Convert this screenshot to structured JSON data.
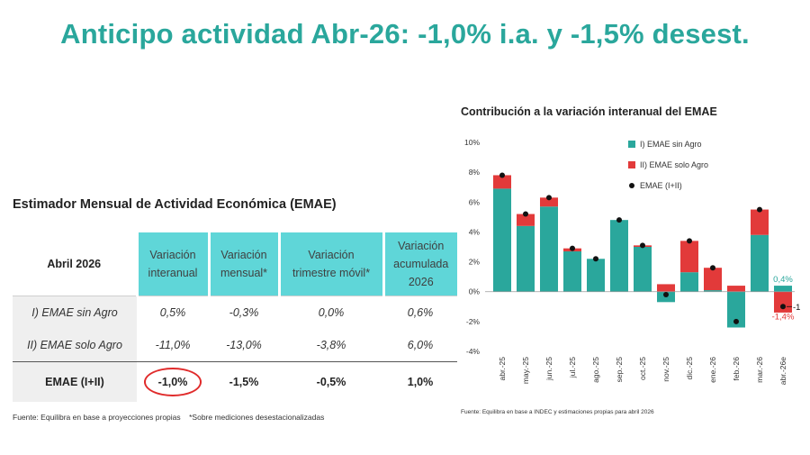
{
  "title": "Anticipo actividad Abr-26: -1,0% i.a. y -1,5% desest.",
  "table": {
    "title": "Estimador Mensual de Actividad Económica (EMAE)",
    "row_header": "Abril 2026",
    "columns": [
      [
        "Variación",
        "interanual"
      ],
      [
        "Variación",
        "mensual*"
      ],
      [
        "Variación",
        "trimestre móvil*"
      ],
      [
        "Variación",
        "acumulada",
        "2026"
      ]
    ],
    "rows": [
      {
        "label": "I) EMAE sin Agro",
        "values": [
          "0,5%",
          "-0,3%",
          "0,0%",
          "0,6%"
        ]
      },
      {
        "label": "II) EMAE solo Agro",
        "values": [
          "-11,0%",
          "-13,0%",
          "-3,8%",
          "6,0%"
        ]
      },
      {
        "label": "EMAE (I+II)",
        "values": [
          "-1,0%",
          "-1,5%",
          "-0,5%",
          "1,0%"
        ]
      }
    ],
    "footnote_source": "Fuente: Equilibra en base a proyecciones propias",
    "footnote_note": "*Sobre mediciones desestacionalizadas"
  },
  "chart_data": {
    "type": "bar",
    "title": "Contribución a la variación interanual del EMAE",
    "categories": [
      "abr.-25",
      "may.-25",
      "jun.-25",
      "jul.-25",
      "ago.-25",
      "sep.-25",
      "oct.-25",
      "nov.-25",
      "dic.-25",
      "ene.-26",
      "feb.-26",
      "mar.-26",
      "abr.-26e"
    ],
    "series": [
      {
        "name": "I) EMAE sin Agro",
        "type": "bar",
        "stacked": true,
        "color": "#2aa79c",
        "values": [
          6.9,
          4.4,
          5.7,
          2.7,
          2.2,
          4.8,
          3.0,
          -0.7,
          1.3,
          0.1,
          -2.4,
          3.8,
          0.4
        ]
      },
      {
        "name": "II) EMAE solo Agro",
        "type": "bar",
        "stacked": true,
        "color": "#e23a3a",
        "values": [
          0.9,
          0.8,
          0.6,
          0.2,
          0.0,
          0.0,
          0.1,
          0.5,
          2.1,
          1.5,
          0.4,
          1.7,
          -1.4
        ]
      },
      {
        "name": "EMAE (I+II)",
        "type": "scatter",
        "color": "#111111",
        "values": [
          7.8,
          5.2,
          6.3,
          2.9,
          2.2,
          4.8,
          3.1,
          -0.2,
          3.4,
          1.6,
          -2.0,
          5.5,
          -1.0
        ]
      }
    ],
    "ylim": [
      -4,
      10
    ],
    "yticks": [
      "-4%",
      "-2%",
      "0%",
      "2%",
      "4%",
      "6%",
      "8%",
      "10%"
    ],
    "ytick_values": [
      -4,
      -2,
      0,
      2,
      4,
      6,
      8,
      10
    ],
    "annotations": [
      {
        "text": "0,4%",
        "color": "#2aa79c"
      },
      {
        "text": "-1,0%",
        "color": "#111111"
      },
      {
        "text": "-1,4%",
        "color": "#e23a3a"
      }
    ],
    "legend_position": "top-right",
    "grid": false,
    "footnote": "Fuente: Equilibra en base a INDEC y estimaciones propias para abril 2026"
  }
}
